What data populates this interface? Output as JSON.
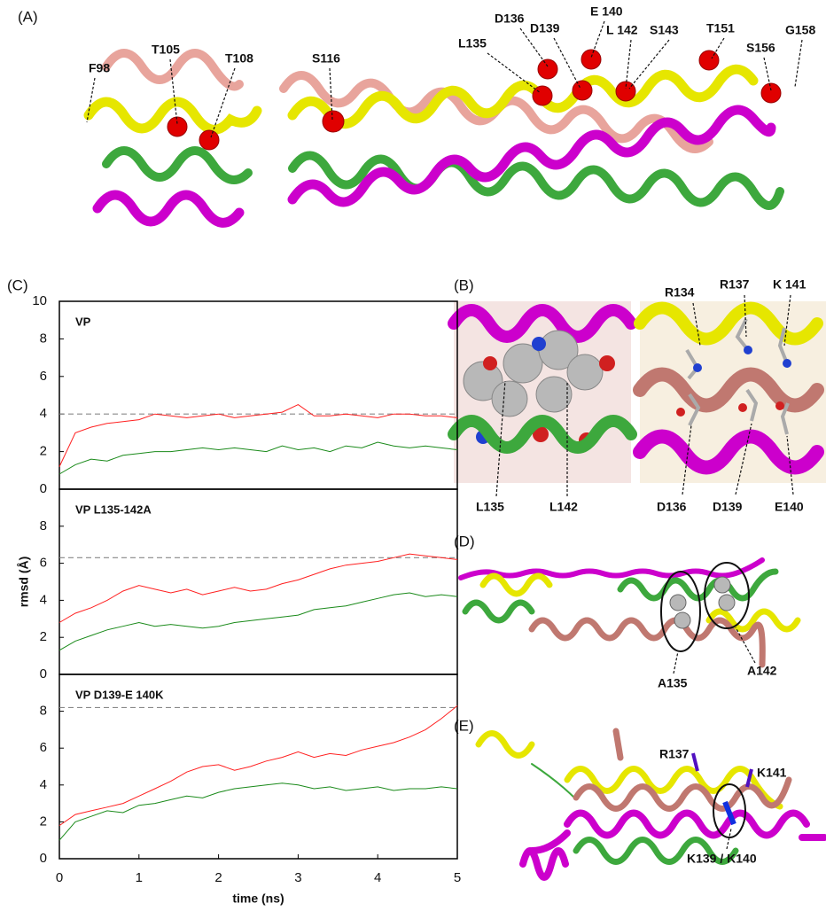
{
  "figure": {
    "panel_a": {
      "label": "(A)",
      "residues": [
        "F98",
        "T105",
        "T108",
        "S116",
        "L135",
        "D136",
        "D139",
        "E 140",
        "L 142",
        "S143",
        "T151",
        "S156",
        "G158"
      ]
    },
    "panel_b": {
      "label": "(B)",
      "left_labels": [
        "L135",
        "L142"
      ],
      "right_top_labels": [
        "R134",
        "R137",
        "K 141"
      ],
      "right_bottom_labels": [
        "D136",
        "D139",
        "E140"
      ]
    },
    "panel_c": {
      "label": "(C)"
    },
    "panel_d": {
      "label": "(D)",
      "labels": [
        "A135",
        "A142"
      ]
    },
    "panel_e": {
      "label": "(E)",
      "labels": [
        "R137",
        "K141",
        "K139 / K140"
      ]
    }
  },
  "chart_data": [
    {
      "type": "line",
      "title": "VP",
      "x": [
        0,
        0.2,
        0.4,
        0.6,
        0.8,
        1,
        1.2,
        1.4,
        1.6,
        1.8,
        2,
        2.2,
        2.4,
        2.6,
        2.8,
        3,
        3.2,
        3.4,
        3.6,
        3.8,
        4,
        4.2,
        4.4,
        4.6,
        4.8,
        5
      ],
      "series": [
        {
          "color": "#ff2020",
          "values": [
            1.2,
            3.0,
            3.3,
            3.5,
            3.6,
            3.7,
            4.0,
            3.9,
            3.8,
            3.9,
            4.0,
            3.8,
            3.9,
            4.0,
            4.1,
            4.5,
            3.9,
            3.9,
            4.0,
            3.9,
            3.8,
            4.0,
            4.0,
            3.9,
            3.9,
            3.8
          ]
        },
        {
          "color": "#1a8a1a",
          "values": [
            0.8,
            1.3,
            1.6,
            1.5,
            1.8,
            1.9,
            2.0,
            2.0,
            2.1,
            2.2,
            2.1,
            2.2,
            2.1,
            2.0,
            2.3,
            2.1,
            2.2,
            2.0,
            2.3,
            2.2,
            2.5,
            2.3,
            2.2,
            2.3,
            2.2,
            2.1
          ]
        }
      ],
      "reference_line": 4,
      "xlim": [
        0,
        5
      ],
      "ylim": [
        0,
        10
      ],
      "yticks": [
        0,
        2,
        4,
        6,
        8,
        10
      ]
    },
    {
      "type": "line",
      "title": "VP L135-142A",
      "ylabel": "rmsd (Å)",
      "x": [
        0,
        0.2,
        0.4,
        0.6,
        0.8,
        1,
        1.2,
        1.4,
        1.6,
        1.8,
        2,
        2.2,
        2.4,
        2.6,
        2.8,
        3,
        3.2,
        3.4,
        3.6,
        3.8,
        4,
        4.2,
        4.4,
        4.6,
        4.8,
        5
      ],
      "series": [
        {
          "color": "#ff2020",
          "values": [
            2.8,
            3.3,
            3.6,
            4.0,
            4.5,
            4.8,
            4.6,
            4.4,
            4.6,
            4.3,
            4.5,
            4.7,
            4.5,
            4.6,
            4.9,
            5.1,
            5.4,
            5.7,
            5.9,
            6.0,
            6.1,
            6.3,
            6.5,
            6.4,
            6.3,
            6.2
          ]
        },
        {
          "color": "#1a8a1a",
          "values": [
            1.3,
            1.8,
            2.1,
            2.4,
            2.6,
            2.8,
            2.6,
            2.7,
            2.6,
            2.5,
            2.6,
            2.8,
            2.9,
            3.0,
            3.1,
            3.2,
            3.5,
            3.6,
            3.7,
            3.9,
            4.1,
            4.3,
            4.4,
            4.2,
            4.3,
            4.2
          ]
        }
      ],
      "reference_line": 6.3,
      "xlim": [
        0,
        5
      ],
      "ylim": [
        0,
        10
      ],
      "yticks": [
        0,
        2,
        4,
        6,
        8
      ]
    },
    {
      "type": "line",
      "title": "VP D139-E 140K",
      "xlabel": "time (ns)",
      "x": [
        0,
        0.2,
        0.4,
        0.6,
        0.8,
        1,
        1.2,
        1.4,
        1.6,
        1.8,
        2,
        2.2,
        2.4,
        2.6,
        2.8,
        3,
        3.2,
        3.4,
        3.6,
        3.8,
        4,
        4.2,
        4.4,
        4.6,
        4.8,
        5
      ],
      "series": [
        {
          "color": "#ff2020",
          "values": [
            1.8,
            2.4,
            2.6,
            2.8,
            3.0,
            3.4,
            3.8,
            4.2,
            4.7,
            5.0,
            5.1,
            4.8,
            5.0,
            5.3,
            5.5,
            5.8,
            5.5,
            5.7,
            5.6,
            5.9,
            6.1,
            6.3,
            6.6,
            7.0,
            7.6,
            8.3
          ]
        },
        {
          "color": "#1a8a1a",
          "values": [
            1.0,
            2.0,
            2.3,
            2.6,
            2.5,
            2.9,
            3.0,
            3.2,
            3.4,
            3.3,
            3.6,
            3.8,
            3.9,
            4.0,
            4.1,
            4.0,
            3.8,
            3.9,
            3.7,
            3.8,
            3.9,
            3.7,
            3.8,
            3.8,
            3.9,
            3.8
          ]
        }
      ],
      "reference_line": 8.2,
      "xlim": [
        0,
        5
      ],
      "ylim": [
        0,
        10
      ],
      "yticks": [
        0,
        2,
        4,
        6,
        8
      ],
      "xticks": [
        0,
        1,
        2,
        3,
        4,
        5
      ]
    }
  ]
}
